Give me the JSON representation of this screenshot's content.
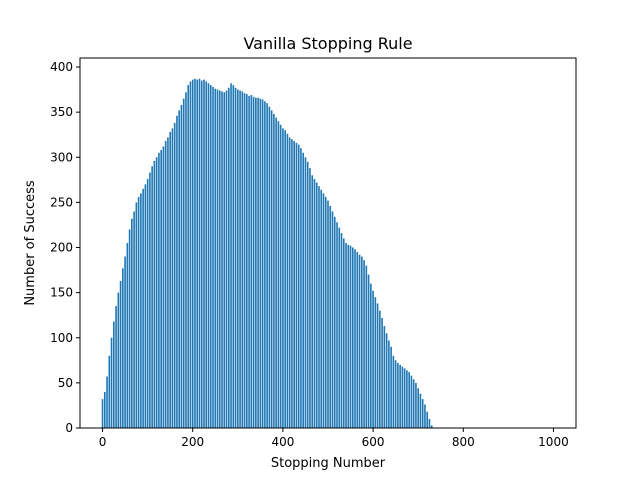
{
  "chart_data": {
    "type": "bar",
    "title": "Vanilla Stopping Rule",
    "xlabel": "Stopping Number",
    "ylabel": "Number of Success",
    "xlim": [
      -50,
      1050
    ],
    "ylim": [
      0,
      410
    ],
    "xticks": [
      0,
      200,
      400,
      600,
      800,
      1000
    ],
    "yticks": [
      0,
      50,
      100,
      150,
      200,
      250,
      300,
      350,
      400
    ],
    "bar_color": "#1f77b4",
    "grid": false,
    "legend": "none",
    "x_start": 0,
    "x_step": 5,
    "values": [
      32,
      40,
      57,
      80,
      100,
      118,
      135,
      150,
      163,
      177,
      190,
      205,
      220,
      232,
      240,
      250,
      256,
      260,
      265,
      270,
      276,
      283,
      290,
      296,
      300,
      305,
      308,
      312,
      318,
      322,
      328,
      332,
      338,
      346,
      352,
      358,
      365,
      372,
      380,
      384,
      386,
      387,
      386,
      387,
      385,
      386,
      384,
      382,
      380,
      378,
      376,
      375,
      374,
      373,
      372,
      374,
      377,
      382,
      380,
      377,
      375,
      374,
      373,
      371,
      370,
      368,
      369,
      367,
      366,
      366,
      365,
      364,
      362,
      360,
      356,
      352,
      348,
      344,
      340,
      336,
      332,
      330,
      326,
      322,
      320,
      318,
      316,
      314,
      310,
      305,
      300,
      295,
      288,
      280,
      276,
      272,
      268,
      264,
      260,
      256,
      252,
      246,
      240,
      234,
      228,
      222,
      216,
      210,
      205,
      203,
      202,
      200,
      198,
      195,
      192,
      190,
      186,
      180,
      170,
      160,
      152,
      145,
      138,
      130,
      122,
      113,
      105,
      97,
      90,
      80,
      75,
      72,
      70,
      68,
      66,
      64,
      62,
      58,
      54,
      50,
      44,
      38,
      32,
      26,
      18,
      10,
      3,
      0
    ]
  }
}
